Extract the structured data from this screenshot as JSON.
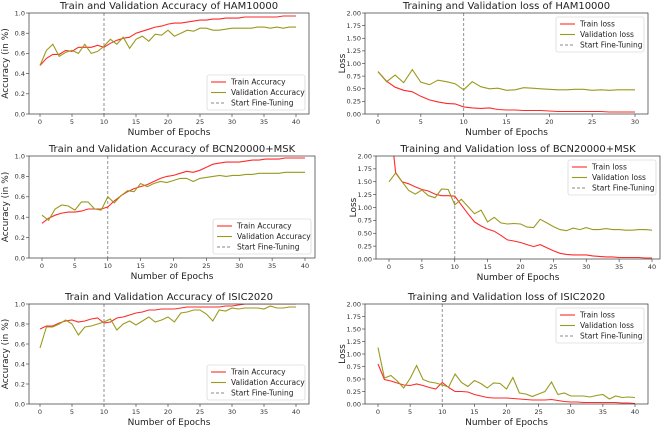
{
  "colors": {
    "train": "#ff2a2a",
    "validation": "#9a9a1e",
    "finetune": "#888888",
    "axes": "#333333"
  },
  "chart_data": [
    {
      "type": "line",
      "title": "Train and Validation Accuracy of HAM10000",
      "xlabel": "Number of Epochs",
      "ylabel": "Accuracy (in %)",
      "xticks": [
        0,
        5,
        10,
        15,
        20,
        25,
        30,
        35,
        40
      ],
      "yticks": [
        "0.0",
        "0.2",
        "0.4",
        "0.6",
        "0.8",
        "1.0"
      ],
      "ylim": [
        0,
        1
      ],
      "finetune_epoch": 10,
      "legend_position": "lower-right",
      "legend": [
        "Train Accuracy",
        "Validation Accuracy",
        "Start Fine-Tuning"
      ],
      "series": [
        {
          "name": "Train Accuracy",
          "values": [
            0.48,
            0.55,
            0.59,
            0.59,
            0.63,
            0.62,
            0.66,
            0.66,
            0.66,
            0.68,
            0.66,
            0.7,
            0.73,
            0.75,
            0.76,
            0.8,
            0.82,
            0.84,
            0.86,
            0.87,
            0.89,
            0.9,
            0.9,
            0.91,
            0.92,
            0.93,
            0.93,
            0.94,
            0.94,
            0.95,
            0.95,
            0.95,
            0.96,
            0.96,
            0.96,
            0.96,
            0.96,
            0.96,
            0.97,
            0.97,
            0.97
          ]
        },
        {
          "name": "Validation Accuracy",
          "values": [
            0.48,
            0.63,
            0.69,
            0.57,
            0.61,
            0.63,
            0.6,
            0.69,
            0.6,
            0.62,
            0.67,
            0.74,
            0.69,
            0.76,
            0.65,
            0.74,
            0.77,
            0.72,
            0.79,
            0.78,
            0.83,
            0.77,
            0.8,
            0.83,
            0.82,
            0.85,
            0.85,
            0.83,
            0.83,
            0.84,
            0.85,
            0.85,
            0.85,
            0.85,
            0.86,
            0.86,
            0.85,
            0.86,
            0.85,
            0.86,
            0.86
          ]
        }
      ]
    },
    {
      "type": "line",
      "title": "Training and Validation loss of HAM10000",
      "xlabel": "Number of Epochs",
      "ylabel": "Loss",
      "xticks": [
        0,
        5,
        10,
        15,
        20,
        25,
        30
      ],
      "yticks": [
        "0.00",
        "0.25",
        "0.50",
        "0.75",
        "1.00",
        "1.25",
        "1.50",
        "1.75",
        "2.00"
      ],
      "ylim": [
        0,
        2
      ],
      "finetune_epoch": 10,
      "legend_position": "upper-right",
      "legend": [
        "Train loss",
        "Validation loss",
        "Start Fine-Tuning"
      ],
      "series": [
        {
          "name": "Train loss",
          "values": [
            0.84,
            0.65,
            0.53,
            0.47,
            0.44,
            0.35,
            0.28,
            0.24,
            0.21,
            0.2,
            0.14,
            0.12,
            0.11,
            0.12,
            0.09,
            0.08,
            0.08,
            0.07,
            0.07,
            0.07,
            0.06,
            0.05,
            0.05,
            0.05,
            0.05,
            0.05,
            0.05,
            0.04,
            0.04,
            0.04,
            0.04
          ]
        },
        {
          "name": "Validation loss",
          "values": [
            0.84,
            0.64,
            0.77,
            0.62,
            0.88,
            0.63,
            0.58,
            0.67,
            0.64,
            0.6,
            0.48,
            0.64,
            0.54,
            0.5,
            0.51,
            0.47,
            0.48,
            0.52,
            0.51,
            0.5,
            0.49,
            0.48,
            0.48,
            0.49,
            0.49,
            0.47,
            0.48,
            0.47,
            0.48,
            0.48,
            0.48
          ]
        }
      ]
    },
    {
      "type": "line",
      "title": "Train and Validation Accuracy of BCN20000+MSK",
      "xlabel": "Number of Epochs",
      "ylabel": "Accuracy (in %)",
      "xticks": [
        0,
        5,
        10,
        15,
        20,
        25,
        30,
        35,
        40
      ],
      "yticks": [
        "0.0",
        "0.2",
        "0.4",
        "0.6",
        "0.8",
        "1.0"
      ],
      "ylim": [
        0,
        1
      ],
      "finetune_epoch": 10,
      "legend_position": "lower-right",
      "legend": [
        "Train Accuracy",
        "Validation Accuracy",
        "Start Fine-Tuning"
      ],
      "series": [
        {
          "name": "Train Accuracy",
          "values": [
            0.34,
            0.39,
            0.42,
            0.44,
            0.45,
            0.45,
            0.46,
            0.48,
            0.48,
            0.48,
            0.5,
            0.56,
            0.61,
            0.65,
            0.68,
            0.7,
            0.72,
            0.75,
            0.78,
            0.8,
            0.81,
            0.83,
            0.85,
            0.84,
            0.86,
            0.89,
            0.92,
            0.93,
            0.94,
            0.94,
            0.94,
            0.95,
            0.96,
            0.96,
            0.97,
            0.97,
            0.97,
            0.98,
            0.98,
            0.98,
            0.98
          ]
        },
        {
          "name": "Validation Accuracy",
          "values": [
            0.42,
            0.37,
            0.48,
            0.52,
            0.51,
            0.47,
            0.55,
            0.55,
            0.48,
            0.47,
            0.6,
            0.54,
            0.61,
            0.66,
            0.65,
            0.73,
            0.7,
            0.73,
            0.75,
            0.74,
            0.76,
            0.78,
            0.78,
            0.75,
            0.78,
            0.79,
            0.8,
            0.81,
            0.8,
            0.81,
            0.81,
            0.82,
            0.82,
            0.83,
            0.83,
            0.83,
            0.83,
            0.84,
            0.84,
            0.84,
            0.84
          ]
        }
      ]
    },
    {
      "type": "line",
      "title": "Training and Validation loss of BCN20000+MSK",
      "xlabel": "Number of Epochs",
      "ylabel": "Loss",
      "xticks": [
        0,
        5,
        10,
        15,
        20,
        25,
        30,
        35,
        40
      ],
      "yticks": [
        "0.00",
        "0.25",
        "0.50",
        "0.75",
        "1.00",
        "1.25",
        "1.50",
        "1.75",
        "2.00"
      ],
      "ylim": [
        0,
        2
      ],
      "finetune_epoch": 10,
      "legend_position": "upper-right",
      "legend": [
        "Train loss",
        "Validation loss",
        "Start Fine-Tuning"
      ],
      "series": [
        {
          "name": "Train loss",
          "values": [
            2.9,
            1.68,
            1.5,
            1.46,
            1.4,
            1.35,
            1.32,
            1.26,
            1.23,
            1.23,
            1.22,
            1.05,
            0.88,
            0.72,
            0.64,
            0.58,
            0.54,
            0.46,
            0.37,
            0.35,
            0.32,
            0.28,
            0.24,
            0.28,
            0.22,
            0.16,
            0.11,
            0.09,
            0.08,
            0.08,
            0.08,
            0.06,
            0.05,
            0.04,
            0.04,
            0.03,
            0.03,
            0.03,
            0.03,
            0.02,
            0.02
          ]
        },
        {
          "name": "Validation loss",
          "values": [
            1.5,
            1.67,
            1.5,
            1.33,
            1.26,
            1.34,
            1.23,
            1.19,
            1.36,
            1.35,
            1.05,
            1.16,
            1.02,
            0.88,
            0.95,
            0.72,
            0.81,
            0.7,
            0.68,
            0.69,
            0.68,
            0.62,
            0.61,
            0.77,
            0.7,
            0.63,
            0.57,
            0.55,
            0.6,
            0.57,
            0.61,
            0.57,
            0.57,
            0.59,
            0.57,
            0.57,
            0.56,
            0.56,
            0.57,
            0.57,
            0.56
          ]
        }
      ]
    },
    {
      "type": "line",
      "title": "Train and Validation Accuracy of ISIC2020",
      "xlabel": "Number of Epochs",
      "ylabel": "Accuracy (in %)",
      "xticks": [
        0,
        5,
        10,
        15,
        20,
        25,
        30,
        35,
        40
      ],
      "yticks": [
        "0.0",
        "0.2",
        "0.4",
        "0.6",
        "0.8",
        "1.0"
      ],
      "ylim": [
        0,
        1
      ],
      "finetune_epoch": 10,
      "legend_position": "lower-right",
      "legend": [
        "Train Accuracy",
        "Validation Accuracy",
        "Start Fine-Tuning"
      ],
      "series": [
        {
          "name": "Train Accuracy",
          "values": [
            0.75,
            0.78,
            0.78,
            0.81,
            0.83,
            0.84,
            0.82,
            0.83,
            0.85,
            0.86,
            0.81,
            0.82,
            0.86,
            0.87,
            0.89,
            0.91,
            0.92,
            0.94,
            0.94,
            0.95,
            0.95,
            0.95,
            0.96,
            0.97,
            0.97,
            0.97,
            0.97,
            0.97,
            0.97,
            0.98,
            0.98,
            0.99,
            1.0,
            1.0,
            1.0,
            1.0,
            1.0,
            1.0,
            1.0,
            1.0,
            1.0
          ]
        },
        {
          "name": "Validation Accuracy",
          "values": [
            0.56,
            0.77,
            0.77,
            0.8,
            0.84,
            0.8,
            0.69,
            0.77,
            0.78,
            0.8,
            0.82,
            0.85,
            0.74,
            0.8,
            0.83,
            0.79,
            0.83,
            0.87,
            0.82,
            0.84,
            0.87,
            0.82,
            0.91,
            0.92,
            0.94,
            0.94,
            0.9,
            0.83,
            0.94,
            0.93,
            0.96,
            0.95,
            0.96,
            0.96,
            0.96,
            0.95,
            0.98,
            0.96,
            0.96,
            0.97,
            0.97
          ]
        }
      ]
    },
    {
      "type": "line",
      "title": "Training and Validation loss of ISIC2020",
      "xlabel": "Number of Epochs",
      "ylabel": "Loss",
      "xticks": [
        0,
        5,
        10,
        15,
        20,
        25,
        30,
        35,
        40
      ],
      "yticks": [
        "0.00",
        "0.25",
        "0.50",
        "0.75",
        "1.00",
        "1.25",
        "1.50",
        "1.75",
        "2.00"
      ],
      "ylim": [
        0,
        2
      ],
      "finetune_epoch": 10,
      "legend_position": "upper-right",
      "legend": [
        "Train loss",
        "Validation loss",
        "Start Fine-Tuning"
      ],
      "series": [
        {
          "name": "Train loss",
          "values": [
            0.8,
            0.49,
            0.46,
            0.42,
            0.38,
            0.37,
            0.4,
            0.37,
            0.33,
            0.3,
            0.43,
            0.33,
            0.25,
            0.25,
            0.24,
            0.19,
            0.16,
            0.13,
            0.12,
            0.12,
            0.12,
            0.11,
            0.1,
            0.09,
            0.08,
            0.08,
            0.08,
            0.09,
            0.07,
            0.05,
            0.04,
            0.04,
            0.03,
            0.03,
            0.03,
            0.03,
            0.03,
            0.03,
            0.02,
            0.02,
            0.01
          ]
        },
        {
          "name": "Validation loss",
          "values": [
            1.13,
            0.52,
            0.57,
            0.46,
            0.32,
            0.51,
            0.77,
            0.49,
            0.44,
            0.42,
            0.38,
            0.34,
            0.6,
            0.43,
            0.35,
            0.47,
            0.41,
            0.32,
            0.42,
            0.41,
            0.3,
            0.53,
            0.22,
            0.2,
            0.15,
            0.2,
            0.25,
            0.44,
            0.19,
            0.22,
            0.16,
            0.16,
            0.16,
            0.14,
            0.17,
            0.19,
            0.1,
            0.16,
            0.13,
            0.14,
            0.13
          ]
        }
      ]
    }
  ]
}
